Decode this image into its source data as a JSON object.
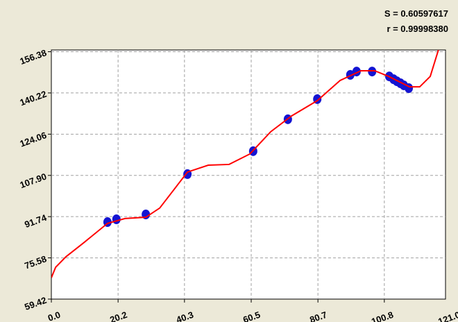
{
  "chart_data": {
    "type": "scatter",
    "annotations": [
      "S = 0.60597617",
      "r = 0.99998380"
    ],
    "xlim": [
      0,
      121
    ],
    "ylim": [
      59.42,
      156.38
    ],
    "xticks": [
      {
        "value": 0,
        "label": "0.0"
      },
      20.2,
      40.3,
      60.5,
      80.7,
      100.8,
      {
        "value": 121,
        "label": "121.0"
      }
    ],
    "yticks": [
      59.42,
      75.58,
      91.74,
      {
        "value": 107.9,
        "label": "107.90"
      },
      124.06,
      140.22,
      156.38
    ],
    "grid": true,
    "points": {
      "color": "#1414d2",
      "x": [
        17.0,
        19.7,
        28.6,
        41.2,
        61.1,
        71.6,
        80.5,
        90.5,
        92.4,
        97.1,
        102.3,
        103.6,
        104.6,
        105.7,
        106.7,
        108.2
      ],
      "y": [
        89.6,
        90.7,
        92.6,
        108.4,
        117.4,
        129.9,
        137.8,
        147.3,
        148.6,
        148.6,
        146.7,
        145.6,
        144.8,
        144.0,
        143.2,
        142.1
      ]
    },
    "fit": {
      "color": "#ff0000",
      "x": [
        0,
        1.3,
        4.4,
        9.7,
        17.0,
        22.3,
        28.6,
        32.8,
        41.2,
        47.5,
        53.8,
        60.1,
        66.4,
        72.7,
        80.5,
        87.4,
        93.7,
        97.9,
        102.1,
        108.4,
        111.5,
        114.7,
        117.3
      ],
      "y": [
        67.8,
        71.9,
        76.0,
        81.4,
        89.1,
        91.0,
        91.5,
        95.1,
        109.2,
        111.9,
        112.2,
        116.3,
        125.0,
        131.2,
        137.2,
        145.1,
        148.9,
        148.9,
        146.7,
        142.6,
        142.6,
        146.7,
        157.6
      ]
    }
  }
}
